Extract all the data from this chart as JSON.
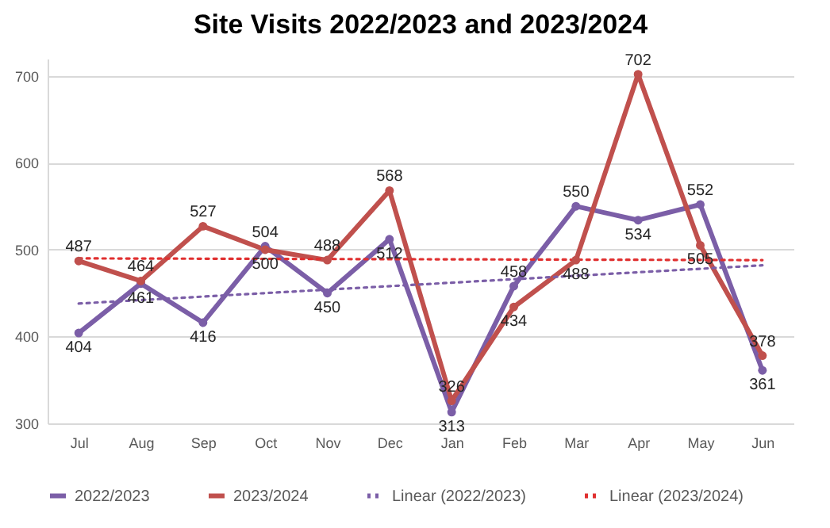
{
  "chart_data": {
    "type": "line",
    "title": "Site Visits 2022/2023 and 2023/2024",
    "categories": [
      "Jul",
      "Aug",
      "Sep",
      "Oct",
      "Nov",
      "Dec",
      "Jan",
      "Feb",
      "Mar",
      "Apr",
      "May",
      "Jun"
    ],
    "series": [
      {
        "name": "2022/2023",
        "color": "#7b5ea7",
        "values": [
          404,
          461,
          416,
          504,
          450,
          512,
          313,
          458,
          550,
          534,
          552,
          361
        ],
        "value_labels": [
          "404",
          "461",
          "416",
          "504",
          "450",
          "512",
          "313",
          "458",
          "550",
          "534",
          "552",
          "361"
        ]
      },
      {
        "name": "2023/2024",
        "color": "#c0504d",
        "values": [
          487,
          464,
          527,
          500,
          488,
          568,
          326,
          434,
          488,
          702,
          505,
          378
        ],
        "value_labels": [
          "487",
          "464",
          "527",
          "500",
          "488",
          "568",
          "326",
          "434",
          "488",
          "702",
          "505",
          "378"
        ]
      },
      {
        "name": "Linear (2022/2023)",
        "color": "#7b5ea7",
        "type": "line",
        "x": [
          "Jul",
          "Jun"
        ],
        "values": [
          438,
          482
        ],
        "line_style": "dotted",
        "marker": "none"
      },
      {
        "name": "Linear (2023/2024)",
        "color": "#e03030",
        "type": "line",
        "x": [
          "Jul",
          "Jun"
        ],
        "values": [
          490,
          488
        ],
        "line_style": "dotted",
        "marker": "none"
      }
    ],
    "ylim": [
      300,
      720
    ],
    "yticks": [
      300,
      400,
      500,
      600,
      700
    ],
    "grid": "y",
    "legend": "bottom",
    "marker": "circle",
    "line_style": "solid"
  }
}
